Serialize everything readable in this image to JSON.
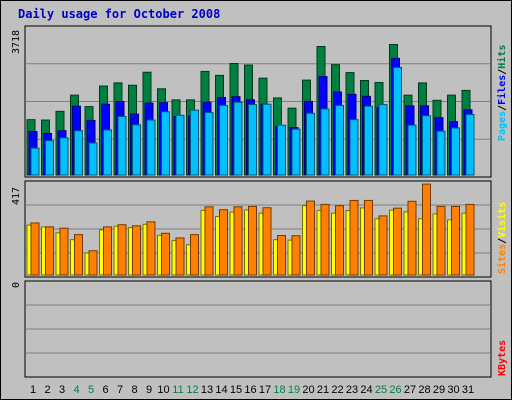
{
  "chart_data": [
    {
      "type": "bar",
      "title": "Daily usage for October 2008",
      "ymax_label": "3718",
      "ylim": [
        0,
        3718
      ],
      "categories": [
        "1",
        "2",
        "3",
        "4",
        "5",
        "6",
        "7",
        "8",
        "9",
        "10",
        "11",
        "12",
        "13",
        "14",
        "15",
        "16",
        "17",
        "18",
        "19",
        "20",
        "21",
        "22",
        "23",
        "24",
        "25",
        "26",
        "27",
        "28",
        "29",
        "30",
        "31"
      ],
      "weekend_days": [
        "4",
        "5",
        "11",
        "12",
        "18",
        "19",
        "25",
        "26"
      ],
      "series": [
        {
          "name": "Hits",
          "color": "#008040",
          "values": [
            1400,
            1390,
            1610,
            2020,
            1730,
            2250,
            2330,
            2270,
            2600,
            2180,
            1900,
            1900,
            2620,
            2520,
            2820,
            2780,
            2450,
            1950,
            1690,
            2400,
            3250,
            2790,
            2590,
            2390,
            2340,
            3300,
            2020,
            2330,
            1890,
            2020,
            2140
          ]
        },
        {
          "name": "Files",
          "color": "#0000ff",
          "values": [
            1100,
            1050,
            1120,
            1740,
            1380,
            1790,
            1860,
            1540,
            1820,
            1830,
            1480,
            1490,
            1840,
            1960,
            1980,
            1900,
            1790,
            1220,
            1200,
            1860,
            2490,
            2100,
            2040,
            1990,
            1700,
            2950,
            1750,
            1750,
            1450,
            1350,
            1650
          ]
        },
        {
          "name": "Pages",
          "color": "#00c0ff",
          "values": [
            680,
            870,
            940,
            1120,
            810,
            1140,
            1480,
            1270,
            1390,
            1600,
            1510,
            1640,
            1580,
            1760,
            1840,
            1780,
            1790,
            1260,
            1160,
            1560,
            1670,
            1760,
            1400,
            1740,
            1780,
            2720,
            1260,
            1500,
            1110,
            1190,
            1530
          ]
        }
      ],
      "legend_position": "right",
      "legend_separator": "/"
    },
    {
      "type": "bar",
      "ymax_label": "417",
      "ylim": [
        0,
        417
      ],
      "series": [
        {
          "name": "Visits",
          "color": "#ffff00",
          "values": [
            226,
            218,
            191,
            160,
            100,
            205,
            221,
            215,
            230,
            180,
            156,
            137,
            293,
            265,
            285,
            295,
            280,
            160,
            158,
            314,
            293,
            280,
            292,
            304,
            255,
            294,
            286,
            255,
            277,
            250,
            280
          ]
        },
        {
          "name": "Sites",
          "color": "#ff8000",
          "values": [
            236,
            218,
            212,
            183,
            110,
            218,
            228,
            223,
            241,
            189,
            168,
            183,
            309,
            296,
            309,
            311,
            305,
            179,
            178,
            335,
            320,
            314,
            338,
            338,
            268,
            303,
            334,
            412,
            311,
            311,
            320
          ]
        }
      ],
      "legend_position": "right",
      "legend_separator": "/"
    },
    {
      "type": "bar",
      "ymax_label": "0",
      "ylim": [
        0,
        1
      ],
      "series": [
        {
          "name": "KBytes",
          "color": "#ff0000",
          "values": [
            0,
            0,
            0,
            0,
            0,
            0,
            0,
            0,
            0,
            0,
            0,
            0,
            0,
            0,
            0,
            0,
            0,
            0,
            0,
            0,
            0,
            0,
            0,
            0,
            0,
            0,
            0,
            0,
            0,
            0,
            0
          ]
        }
      ],
      "legend_position": "right"
    }
  ]
}
